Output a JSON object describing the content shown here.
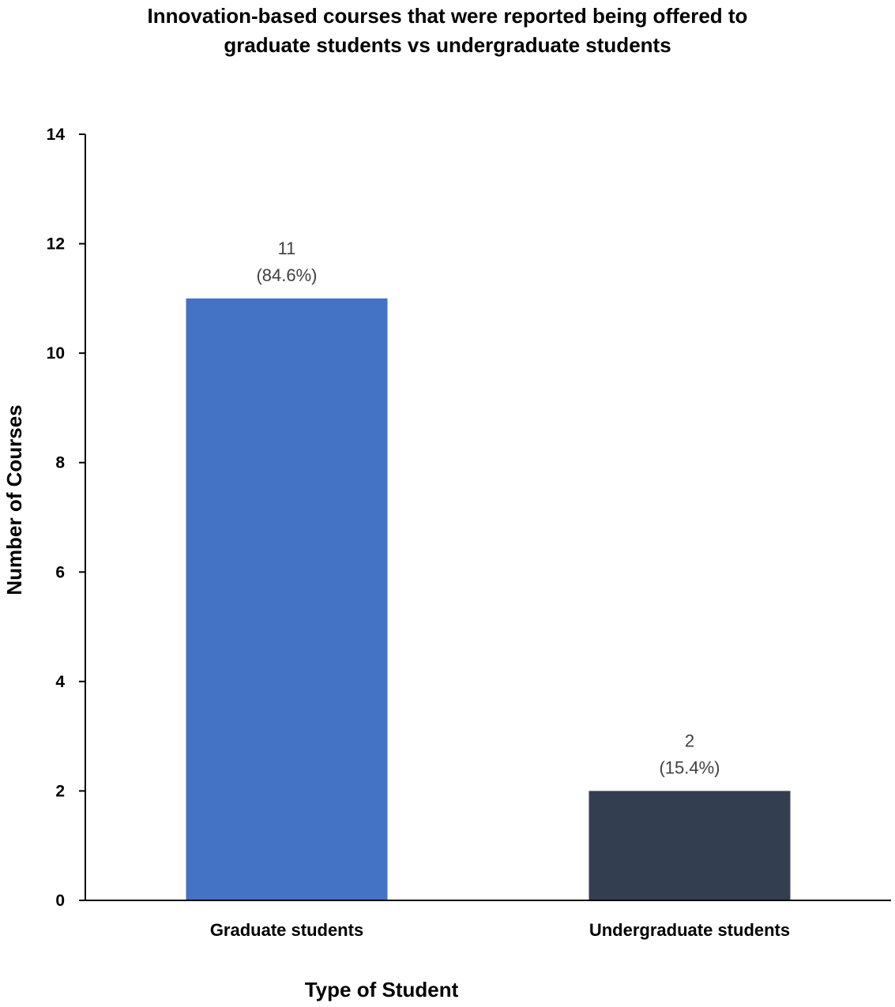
{
  "chart_data": {
    "type": "bar",
    "title_line1": "Innovation-based courses that were reported being offered to",
    "title_line2": "graduate students vs undergraduate students",
    "xlabel": "Type of Student",
    "ylabel": "Number of Courses",
    "ylim": [
      0,
      14
    ],
    "yticks": [
      0,
      2,
      4,
      6,
      8,
      10,
      12,
      14
    ],
    "categories": [
      "Graduate students",
      "Undergraduate students"
    ],
    "values": [
      11,
      2
    ],
    "value_labels": [
      "11",
      "2"
    ],
    "percent_labels": [
      "(84.6%)",
      "(15.4%)"
    ],
    "colors": [
      "#4472c4",
      "#333f50"
    ],
    "grid": false,
    "legend": "none"
  }
}
